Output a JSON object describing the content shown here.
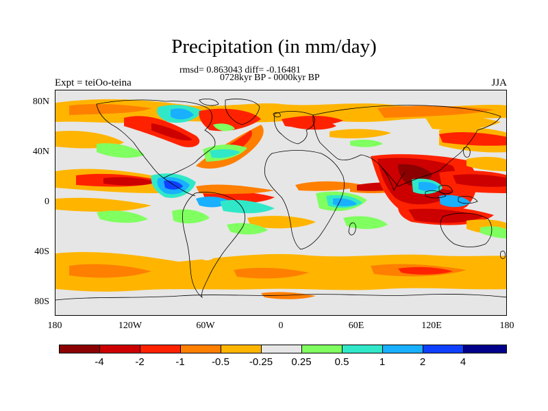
{
  "title": "Precipitation (in mm/day)",
  "stats_line": "rmsd= 0.863043 diff= -0.16481",
  "period_line": "0728kyr BP - 0000kyr BP",
  "experiment": "Expt = teiOo-teina",
  "season": "JJA",
  "axes": {
    "y_ticks": [
      "80N",
      "40N",
      "0",
      "40S",
      "80S"
    ],
    "x_ticks": [
      "180",
      "120W",
      "60W",
      "0",
      "60E",
      "120E",
      "180"
    ]
  },
  "colorbar": {
    "labels": [
      "-4",
      "-2",
      "-1",
      "-0.5",
      "-0.25",
      "0.25",
      "0.5",
      "1",
      "2",
      "4"
    ],
    "colors": [
      "#8b0000",
      "#cc0000",
      "#ff2200",
      "#ff7f00",
      "#ffb500",
      "#e6e6e6",
      "#80ff60",
      "#30e8c8",
      "#18b0ff",
      "#1040ff",
      "#00008b"
    ]
  },
  "map_colors": {
    "land_line": "#000000",
    "background": "#e6e6e6"
  }
}
